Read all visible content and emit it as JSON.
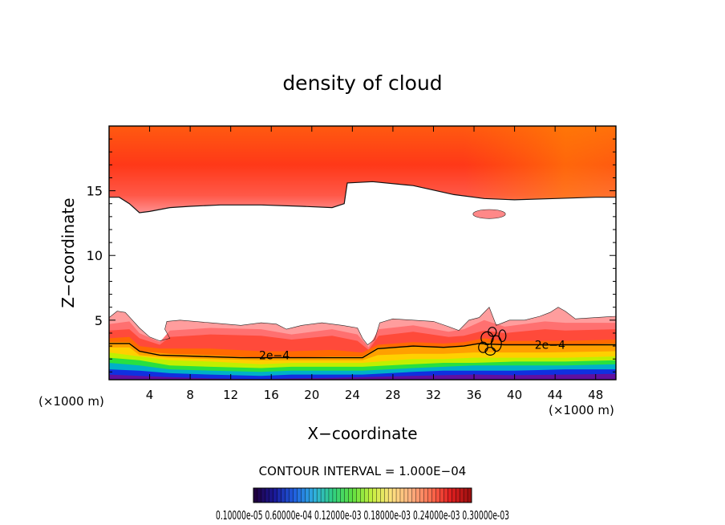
{
  "chart_data": {
    "type": "heatmap",
    "title": "density of cloud",
    "xlabel": "X−coordinate",
    "ylabel": "Z−coordinate",
    "x_unit_left": "(×1000 m)",
    "x_unit_right": "(×1000 m)",
    "xlim": [
      0,
      50
    ],
    "ylim": [
      0.4,
      20
    ],
    "x_ticks": [
      4,
      8,
      12,
      16,
      20,
      24,
      28,
      32,
      36,
      40,
      44,
      48
    ],
    "y_ticks": [
      5,
      10,
      15
    ],
    "contour_interval_text": "CONTOUR INTERVAL = 1.000E−04",
    "contour_labels": [
      {
        "text": "2e−4",
        "x": 16.3,
        "z": 2.3
      },
      {
        "text": "2e−4",
        "x": 43.5,
        "z": 3.1
      }
    ],
    "upper_layer": {
      "top": 20,
      "lower_boundary": [
        [
          0,
          14.5
        ],
        [
          1,
          14.5
        ],
        [
          2,
          14.0
        ],
        [
          3,
          13.3
        ],
        [
          4,
          13.4
        ],
        [
          6,
          13.7
        ],
        [
          8,
          13.8
        ],
        [
          11,
          13.9
        ],
        [
          15,
          13.9
        ],
        [
          19,
          13.8
        ],
        [
          22,
          13.7
        ],
        [
          23.2,
          14.0
        ],
        [
          23.5,
          15.6
        ],
        [
          26,
          15.7
        ],
        [
          30,
          15.4
        ],
        [
          34,
          14.7
        ],
        [
          37,
          14.4
        ],
        [
          40,
          14.3
        ],
        [
          44,
          14.4
        ],
        [
          48,
          14.5
        ],
        [
          50,
          14.5
        ]
      ],
      "patch": {
        "x": 37.5,
        "z": 13.2,
        "rx": 1.6,
        "rz": 0.35
      }
    },
    "lower_layer": {
      "bottom": 0.4,
      "upper_boundary": [
        [
          0,
          5.2
        ],
        [
          0.8,
          5.7
        ],
        [
          1.6,
          5.6
        ],
        [
          2.3,
          5.0
        ],
        [
          3,
          4.4
        ],
        [
          4,
          3.7
        ],
        [
          5,
          3.4
        ],
        [
          6,
          3.6
        ],
        [
          5.5,
          4.3
        ],
        [
          5.7,
          4.9
        ],
        [
          7,
          5.0
        ],
        [
          10,
          4.8
        ],
        [
          13,
          4.6
        ],
        [
          15,
          4.8
        ],
        [
          16.5,
          4.7
        ],
        [
          17.5,
          4.3
        ],
        [
          19,
          4.6
        ],
        [
          21,
          4.8
        ],
        [
          23,
          4.6
        ],
        [
          24.5,
          4.4
        ],
        [
          25,
          3.6
        ],
        [
          25.5,
          3.1
        ],
        [
          26.2,
          3.5
        ],
        [
          26.7,
          4.8
        ],
        [
          28,
          5.1
        ],
        [
          30,
          5.0
        ],
        [
          32,
          4.9
        ],
        [
          33.5,
          4.5
        ],
        [
          34.5,
          4.2
        ],
        [
          35.5,
          5.0
        ],
        [
          36.5,
          5.2
        ],
        [
          37.5,
          6.0
        ],
        [
          38.2,
          4.6
        ],
        [
          39.5,
          5.0
        ],
        [
          41,
          5.0
        ],
        [
          42.5,
          5.3
        ],
        [
          43.5,
          5.6
        ],
        [
          44.3,
          6.0
        ],
        [
          45,
          5.7
        ],
        [
          46,
          5.1
        ],
        [
          48,
          5.2
        ],
        [
          50,
          5.3
        ]
      ],
      "bands": [
        {
          "level": 5e-05,
          "color": "#ff7070",
          "boundary": [
            [
              0,
              4.7
            ],
            [
              2,
              4.9
            ],
            [
              3,
              4.0
            ],
            [
              5,
              3.3
            ],
            [
              6,
              4.2
            ],
            [
              10,
              4.4
            ],
            [
              15,
              4.3
            ],
            [
              18,
              3.9
            ],
            [
              22,
              4.3
            ],
            [
              24.5,
              3.9
            ],
            [
              25.6,
              2.9
            ],
            [
              26.6,
              4.3
            ],
            [
              30,
              4.6
            ],
            [
              33.5,
              4.1
            ],
            [
              35,
              4.3
            ],
            [
              37,
              5.0
            ],
            [
              39,
              4.5
            ],
            [
              43,
              4.9
            ],
            [
              45,
              4.8
            ],
            [
              50,
              4.8
            ]
          ]
        },
        {
          "level": 0.0001,
          "color": "#ff4a3a",
          "boundary": [
            [
              0,
              4.2
            ],
            [
              2,
              4.3
            ],
            [
              3,
              3.6
            ],
            [
              5,
              3.1
            ],
            [
              6,
              3.7
            ],
            [
              10,
              3.9
            ],
            [
              15,
              3.8
            ],
            [
              18,
              3.5
            ],
            [
              22,
              3.8
            ],
            [
              24.5,
              3.4
            ],
            [
              25.6,
              2.7
            ],
            [
              26.6,
              3.8
            ],
            [
              30,
              4.1
            ],
            [
              33.5,
              3.7
            ],
            [
              35,
              3.8
            ],
            [
              37,
              4.2
            ],
            [
              39,
              4.0
            ],
            [
              43,
              4.3
            ],
            [
              45,
              4.2
            ],
            [
              50,
              4.3
            ]
          ]
        },
        {
          "level": 0.00015,
          "color": "#ff6a00",
          "boundary": [
            [
              0,
              3.6
            ],
            [
              2,
              3.7
            ],
            [
              3,
              3.0
            ],
            [
              5,
              2.8
            ],
            [
              10,
              2.8
            ],
            [
              15,
              2.6
            ],
            [
              18,
              2.6
            ],
            [
              22,
              2.7
            ],
            [
              25,
              2.5
            ],
            [
              26.5,
              3.1
            ],
            [
              30,
              3.3
            ],
            [
              33,
              3.2
            ],
            [
              35,
              3.3
            ],
            [
              37,
              3.6
            ],
            [
              39,
              3.4
            ],
            [
              43,
              3.4
            ],
            [
              45,
              3.4
            ],
            [
              50,
              3.5
            ]
          ]
        },
        {
          "level": 0.0002,
          "color": "#ffa000",
          "boundary": [
            [
              0,
              3.3
            ],
            [
              2,
              3.3
            ],
            [
              3,
              2.6
            ],
            [
              6,
              2.4
            ],
            [
              10,
              2.3
            ],
            [
              15,
              2.1
            ],
            [
              18,
              2.1
            ],
            [
              22,
              2.2
            ],
            [
              25,
              2.2
            ],
            [
              26.5,
              2.9
            ],
            [
              30,
              3.0
            ],
            [
              33,
              2.9
            ],
            [
              35,
              3.0
            ],
            [
              37,
              3.3
            ],
            [
              39,
              3.1
            ],
            [
              43,
              3.1
            ],
            [
              45,
              3.1
            ],
            [
              50,
              3.2
            ]
          ]
        },
        {
          "level": 0.00025,
          "color": "#ffd000",
          "boundary": [
            [
              0,
              2.9
            ],
            [
              2,
              2.9
            ],
            [
              3,
              2.3
            ],
            [
              6,
              2.1
            ],
            [
              10,
              2.0
            ],
            [
              15,
              1.9
            ],
            [
              18,
              1.9
            ],
            [
              22,
              1.9
            ],
            [
              25,
              1.9
            ],
            [
              26.5,
              2.3
            ],
            [
              30,
              2.4
            ],
            [
              33,
              2.4
            ],
            [
              36,
              2.5
            ],
            [
              39,
              2.5
            ],
            [
              43,
              2.5
            ],
            [
              50,
              2.6
            ]
          ]
        },
        {
          "level": 0.0003,
          "color": "#c0f000",
          "boundary": [
            [
              0,
              2.5
            ],
            [
              3,
              2.2
            ],
            [
              6,
              1.9
            ],
            [
              10,
              1.8
            ],
            [
              15,
              1.6
            ],
            [
              18,
              1.7
            ],
            [
              22,
              1.7
            ],
            [
              25,
              1.7
            ],
            [
              30,
              2.0
            ],
            [
              33,
              2.0
            ],
            [
              36,
              2.1
            ],
            [
              40,
              2.1
            ],
            [
              45,
              2.1
            ],
            [
              50,
              2.2
            ]
          ]
        },
        {
          "level": 0.00035,
          "color": "#28e040",
          "boundary": [
            [
              0,
              2.1
            ],
            [
              3,
              1.9
            ],
            [
              6,
              1.5
            ],
            [
              10,
              1.4
            ],
            [
              15,
              1.3
            ],
            [
              18,
              1.4
            ],
            [
              22,
              1.4
            ],
            [
              25,
              1.4
            ],
            [
              30,
              1.6
            ],
            [
              33,
              1.7
            ],
            [
              36,
              1.7
            ],
            [
              40,
              1.8
            ],
            [
              45,
              1.8
            ],
            [
              50,
              1.9
            ]
          ]
        },
        {
          "level": 0.0004,
          "color": "#00b0c8",
          "boundary": [
            [
              0,
              1.7
            ],
            [
              3,
              1.5
            ],
            [
              6,
              1.2
            ],
            [
              10,
              1.1
            ],
            [
              15,
              1.0
            ],
            [
              18,
              1.1
            ],
            [
              22,
              1.1
            ],
            [
              25,
              1.1
            ],
            [
              30,
              1.3
            ],
            [
              33,
              1.4
            ],
            [
              36,
              1.5
            ],
            [
              40,
              1.5
            ],
            [
              45,
              1.5
            ],
            [
              50,
              1.6
            ]
          ]
        },
        {
          "level": 0.00045,
          "color": "#1030e0",
          "boundary": [
            [
              0,
              1.2
            ],
            [
              3,
              1.1
            ],
            [
              6,
              0.9
            ],
            [
              10,
              0.8
            ],
            [
              15,
              0.7
            ],
            [
              18,
              0.8
            ],
            [
              22,
              0.8
            ],
            [
              25,
              0.8
            ],
            [
              30,
              1.0
            ],
            [
              33,
              1.1
            ],
            [
              36,
              1.1
            ],
            [
              40,
              1.1
            ],
            [
              45,
              1.2
            ],
            [
              50,
              1.2
            ]
          ]
        },
        {
          "level": 0.0005,
          "color": "#6010a0",
          "boundary": [
            [
              0,
              0.8
            ],
            [
              3,
              0.7
            ],
            [
              6,
              0.6
            ],
            [
              10,
              0.5
            ],
            [
              15,
              0.45
            ],
            [
              18,
              0.5
            ],
            [
              22,
              0.55
            ],
            [
              25,
              0.6
            ],
            [
              30,
              0.7
            ],
            [
              33,
              0.75
            ],
            [
              36,
              0.8
            ],
            [
              40,
              0.75
            ],
            [
              45,
              0.8
            ],
            [
              50,
              0.85
            ]
          ]
        }
      ],
      "contour_2e4": [
        [
          0,
          3.2
        ],
        [
          2,
          3.2
        ],
        [
          3,
          2.6
        ],
        [
          5,
          2.3
        ],
        [
          9,
          2.2
        ],
        [
          13,
          2.1
        ],
        [
          18,
          2.1
        ],
        [
          21,
          2.1
        ],
        [
          25,
          2.1
        ],
        [
          26.5,
          2.8
        ],
        [
          30,
          3.0
        ],
        [
          33,
          2.9
        ],
        [
          35,
          3.0
        ],
        [
          36.5,
          3.2
        ],
        [
          39,
          3.1
        ],
        [
          43,
          3.1
        ],
        [
          46,
          3.1
        ],
        [
          50,
          3.1
        ]
      ]
    },
    "colorbar": {
      "levels": 55,
      "stops": [
        "#200040",
        "#1a1a9a",
        "#2060e0",
        "#30b0e0",
        "#30d080",
        "#60e040",
        "#c8f040",
        "#ffe080",
        "#ffb080",
        "#ff7050",
        "#e02020",
        "#a01010"
      ],
      "labels": [
        "0.10000e-05",
        "0.60000e-04",
        "0.12000e-03",
        "0.18000e-03",
        "0.24000e-03",
        "0.30000e-03"
      ],
      "labels_text": "0.10000e-05 0.60000e-04 0.12000e-03 0.18000e-03 0.24000e-03 0.30000e-03"
    }
  }
}
